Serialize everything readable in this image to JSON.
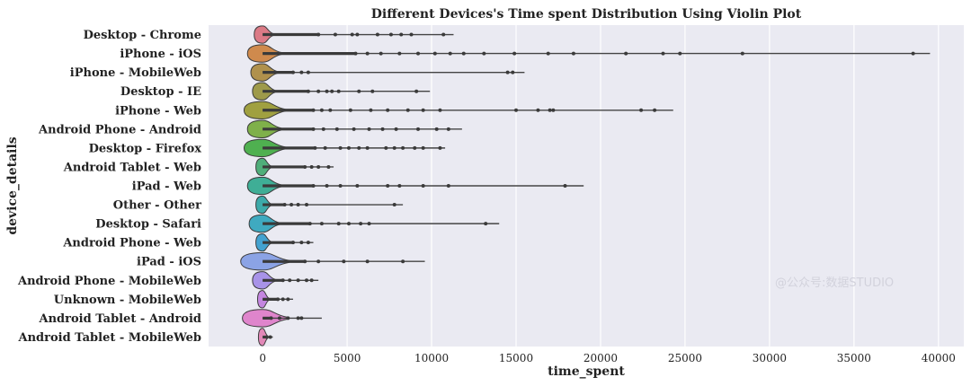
{
  "watermark": "@公众号:数据STUDIO",
  "chart_data": {
    "type": "violin",
    "title": "Different Devices's Time spent Distribution Using Violin Plot",
    "xlabel": "time_spent",
    "ylabel": "device_details",
    "xlim": [
      -3200,
      41500
    ],
    "xticks": [
      0,
      5000,
      10000,
      15000,
      20000,
      25000,
      30000,
      35000,
      40000
    ],
    "grid": true,
    "background": "#eaeaf2",
    "categories": [
      {
        "label": "Desktop - Chrome",
        "color": "#db7a86",
        "width": 500,
        "max": 11300,
        "points": [
          3300,
          4300,
          5300,
          5600,
          6800,
          7600,
          8200,
          8800,
          10700
        ]
      },
      {
        "label": "iPhone - iOS",
        "color": "#cf8a4d",
        "width": 900,
        "max": 39500,
        "points": [
          5500,
          6200,
          7000,
          8100,
          9200,
          10200,
          11100,
          11900,
          13100,
          14900,
          16900,
          18400,
          21500,
          23700,
          24700,
          28400,
          38500
        ]
      },
      {
        "label": "iPhone - MobileWeb",
        "color": "#b0914c",
        "width": 700,
        "max": 15500,
        "points": [
          1800,
          2300,
          2700,
          14500,
          14800
        ]
      },
      {
        "label": "Desktop - IE",
        "color": "#9e9a4a",
        "width": 600,
        "max": 9900,
        "points": [
          2700,
          3300,
          3800,
          4100,
          4500,
          5700,
          6500,
          9100
        ]
      },
      {
        "label": "iPhone - Web",
        "color": "#a0a040",
        "width": 1100,
        "max": 24300,
        "points": [
          3000,
          3500,
          4000,
          5200,
          6400,
          7400,
          8600,
          9500,
          10500,
          15000,
          16300,
          17000,
          17200,
          22400,
          23200
        ]
      },
      {
        "label": "Android Phone - Android",
        "color": "#7fb04a",
        "width": 900,
        "max": 11800,
        "points": [
          3000,
          3600,
          4400,
          5400,
          6300,
          7100,
          7900,
          9200,
          10300,
          11000
        ]
      },
      {
        "label": "Desktop - Firefox",
        "color": "#4fb050",
        "width": 1100,
        "max": 10800,
        "points": [
          3100,
          3700,
          4600,
          5100,
          5700,
          6200,
          7300,
          7800,
          8300,
          9000,
          9500,
          10500
        ]
      },
      {
        "label": "Android Tablet - Web",
        "color": "#4fae7a",
        "width": 400,
        "max": 4200,
        "points": [
          2500,
          2900,
          3300,
          3900
        ]
      },
      {
        "label": "iPad - Web",
        "color": "#3fae96",
        "width": 900,
        "max": 19000,
        "points": [
          3000,
          3800,
          4600,
          5600,
          7400,
          8100,
          9500,
          11000,
          17900
        ]
      },
      {
        "label": "Other - Other",
        "color": "#3daaaa",
        "width": 400,
        "max": 8300,
        "points": [
          1300,
          1700,
          2100,
          2600,
          7800
        ]
      },
      {
        "label": "Desktop - Safari",
        "color": "#3faac0",
        "width": 800,
        "max": 14000,
        "points": [
          2800,
          3500,
          4500,
          5100,
          5800,
          6300,
          13200
        ]
      },
      {
        "label": "Android Phone - Web",
        "color": "#43a2d0",
        "width": 400,
        "max": 3000,
        "points": [
          1800,
          2300,
          2700
        ]
      },
      {
        "label": "iPad - iOS",
        "color": "#8ba3e5",
        "width": 1300,
        "max": 9600,
        "points": [
          2500,
          3300,
          4800,
          6200,
          8300
        ]
      },
      {
        "label": "Android Phone - MobileWeb",
        "color": "#a893e8",
        "width": 600,
        "max": 3300,
        "points": [
          1200,
          1600,
          2100,
          2600,
          2900
        ]
      },
      {
        "label": "Unknown - MobileWeb",
        "color": "#c486e0",
        "width": 300,
        "max": 1800,
        "points": [
          900,
          1200,
          1500
        ]
      },
      {
        "label": "Android Tablet - Android",
        "color": "#df85cc",
        "width": 1200,
        "max": 3500,
        "points": [
          500,
          1000,
          1500,
          2100,
          2300
        ]
      },
      {
        "label": "Android Tablet - MobileWeb",
        "color": "#e288b8",
        "width": 250,
        "max": 600,
        "points": [
          250,
          450
        ]
      }
    ]
  }
}
